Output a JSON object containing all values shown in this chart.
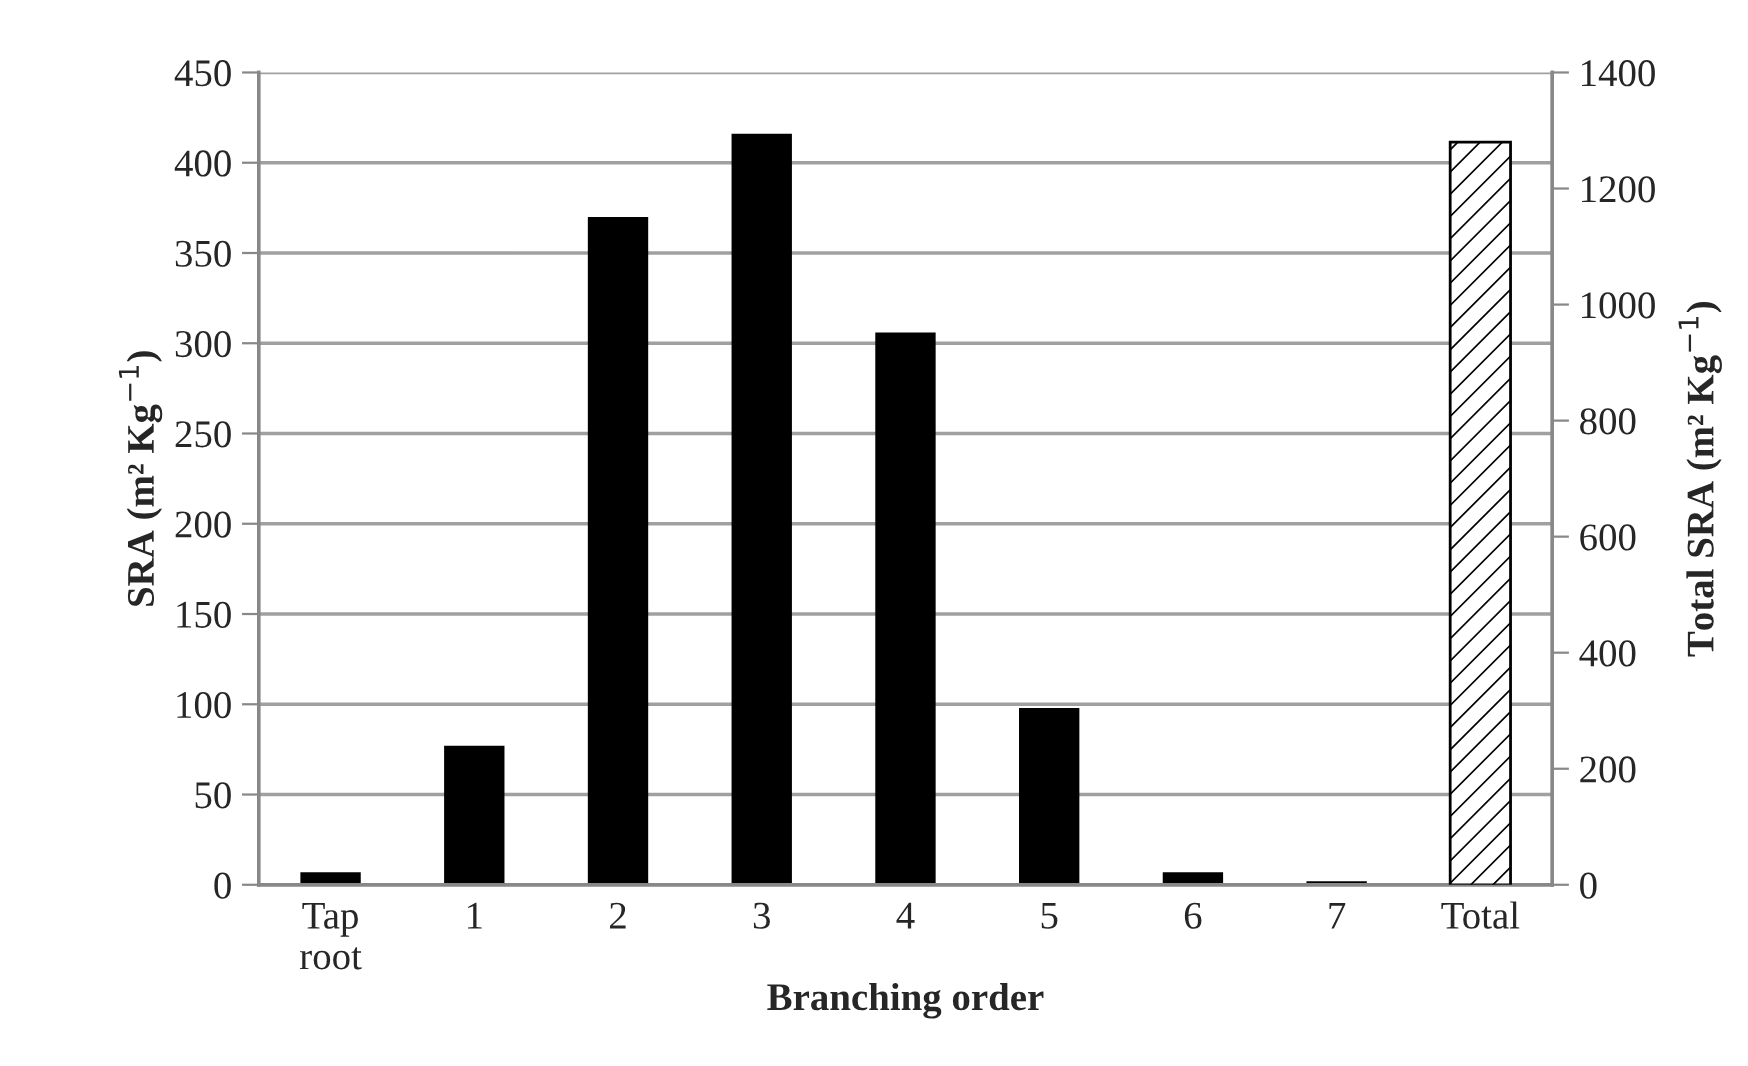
{
  "chart_data": {
    "type": "bar",
    "xlabel": "Branching order",
    "ylabel": "SRA (m² Kg$^{−1}$)",
    "y2label": "Total SRA (m² Kg$^{−1}$)",
    "categories": [
      "Tap\nroot",
      "1",
      "2",
      "3",
      "4",
      "5",
      "6",
      "7",
      "Total"
    ],
    "series": [
      {
        "color": "#000000",
        "values": [
          7,
          77,
          370,
          416,
          306,
          98,
          7,
          2,
          null
        ]
      },
      {
        "color": "#ffffff",
        "axis": "y2",
        "values": [
          null,
          null,
          null,
          null,
          null,
          null,
          null,
          null,
          1280
        ]
      }
    ],
    "ylim": [
      0,
      450
    ],
    "yticks": [
      0,
      50,
      100,
      150,
      200,
      250,
      300,
      350,
      400,
      450
    ],
    "y2lim": [
      0,
      1400
    ],
    "y2ticks": [
      0,
      200,
      400,
      600,
      800,
      1000,
      1200,
      1400
    ],
    "grid": "y",
    "legend": false
  }
}
